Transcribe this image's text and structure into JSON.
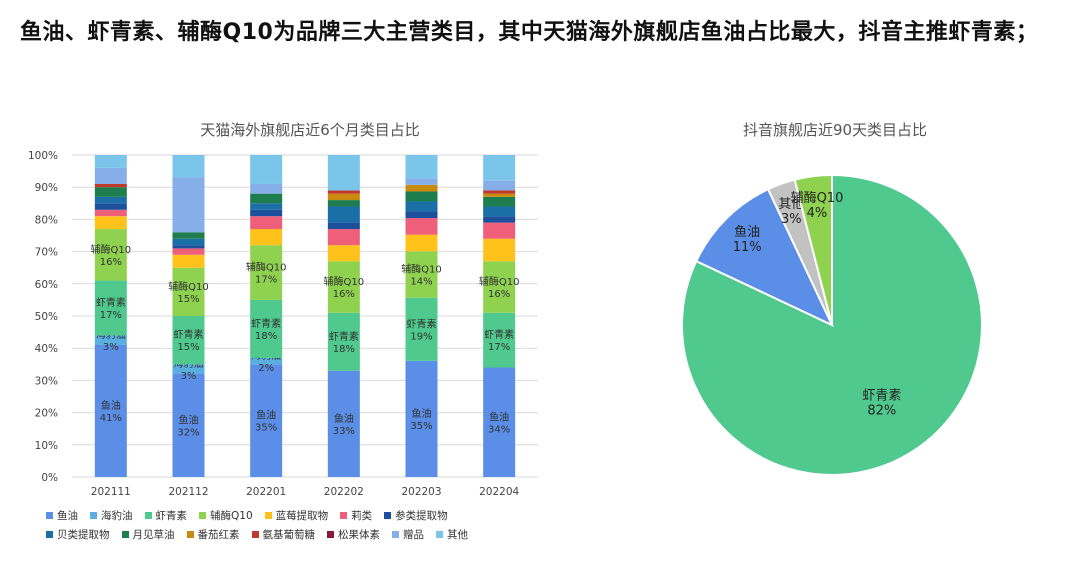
{
  "headline": "鱼油、虾青素、辅酶Q10为品牌三大主营类目，其中天猫海外旗舰店鱼油占比最大，抖音主推虾青素；",
  "colors": {
    "鱼油": "#5b8ee6",
    "海豹油": "#5aaee0",
    "虾青素": "#4fc98e",
    "辅酶Q10": "#8fd24f",
    "蓝莓提取物": "#ffc21a",
    "莉类": "#ef5f7a",
    "参类提取物": "#1c4f9c",
    "贝类提取物": "#1a6fa6",
    "月见草油": "#1e7d4e",
    "番茄红素": "#c98a10",
    "氨基葡萄糖": "#c0392b",
    "松果体素": "#8b1a3a",
    "赠品": "#86aee8",
    "其他": "#7cc5ea",
    "pie_other": "#c2c2c2"
  },
  "chart_data": [
    {
      "type": "bar",
      "stacked": true,
      "title": "天猫海外旗舰店近6个月类目占比",
      "categories": [
        "202111",
        "202112",
        "202201",
        "202202",
        "202203",
        "202204"
      ],
      "ylim": [
        0,
        100
      ],
      "yticks": [
        "0%",
        "10%",
        "20%",
        "30%",
        "40%",
        "50%",
        "60%",
        "70%",
        "80%",
        "90%",
        "100%"
      ],
      "grid": true,
      "legend_position": "bottom",
      "series": [
        {
          "name": "鱼油",
          "values": [
            41,
            32,
            35,
            33,
            35,
            34
          ],
          "labels": [
            "鱼油\n41%",
            "鱼油\n32%",
            "鱼油\n35%",
            "鱼油\n33%",
            "鱼油\n35%",
            "鱼油\n34%"
          ]
        },
        {
          "name": "海豹油",
          "values": [
            3,
            3,
            2,
            0,
            0,
            0
          ],
          "labels": [
            "海豹油\n3%",
            "海豹油\n3%",
            "海豹油\n2%",
            "",
            "",
            ""
          ]
        },
        {
          "name": "虾青素",
          "values": [
            17,
            15,
            18,
            18,
            19,
            17
          ],
          "labels": [
            "虾青素\n17%",
            "虾青素\n15%",
            "虾青素\n18%",
            "虾青素\n18%",
            "虾青素\n19%",
            "虾青素\n17%"
          ]
        },
        {
          "name": "辅酶Q10",
          "values": [
            16,
            15,
            17,
            16,
            14,
            16
          ],
          "labels": [
            "辅酶Q10\n16%",
            "辅酶Q10\n15%",
            "辅酶Q10\n17%",
            "辅酶Q10\n16%",
            "辅酶Q10\n14%",
            "辅酶Q10\n16%"
          ]
        },
        {
          "name": "蓝莓提取物",
          "values": [
            4,
            4,
            5,
            5,
            5,
            7
          ],
          "labels": [
            "",
            "",
            "",
            "",
            "",
            ""
          ]
        },
        {
          "name": "莉类",
          "values": [
            2,
            2,
            4,
            5,
            5,
            5
          ],
          "labels": [
            "",
            "",
            "",
            "",
            "",
            ""
          ]
        },
        {
          "name": "参类提取物",
          "values": [
            2,
            1,
            2,
            2,
            2,
            2
          ],
          "labels": [
            "",
            "",
            "",
            "",
            "",
            ""
          ]
        },
        {
          "name": "贝类提取物",
          "values": [
            2,
            2,
            2,
            5,
            3,
            3
          ],
          "labels": [
            "",
            "",
            "",
            "",
            "",
            ""
          ]
        },
        {
          "name": "月见草油",
          "values": [
            3,
            2,
            3,
            2,
            3,
            3
          ],
          "labels": [
            "",
            "",
            "",
            "",
            "",
            ""
          ]
        },
        {
          "name": "番茄红素",
          "values": [
            0,
            0,
            0,
            2,
            2,
            1
          ],
          "labels": [
            "",
            "",
            "",
            "",
            "",
            ""
          ]
        },
        {
          "name": "氨基葡萄糖",
          "values": [
            1,
            0,
            0,
            1,
            0,
            1
          ],
          "labels": [
            "",
            "",
            "",
            "",
            "",
            ""
          ]
        },
        {
          "name": "松果体素",
          "values": [
            0,
            0,
            0,
            0,
            0,
            0
          ],
          "labels": [
            "",
            "",
            "",
            "",
            "",
            ""
          ]
        },
        {
          "name": "赠品",
          "values": [
            5,
            17,
            3,
            0,
            2,
            3
          ],
          "labels": [
            "",
            "",
            "",
            "",
            "",
            ""
          ]
        },
        {
          "name": "其他",
          "values": [
            4,
            7,
            9,
            11,
            7,
            8
          ],
          "labels": [
            "",
            "",
            "",
            "",
            "",
            ""
          ]
        }
      ]
    },
    {
      "type": "pie",
      "title": "抖音旗舰店近90天类目占比",
      "slices": [
        {
          "name": "虾青素",
          "value": 82,
          "label": "虾青素\n82%"
        },
        {
          "name": "鱼油",
          "value": 11,
          "label": "鱼油\n11%"
        },
        {
          "name": "其他",
          "value": 3,
          "label": "其他\n3%"
        },
        {
          "name": "辅酶Q10",
          "value": 4,
          "label": "辅酶Q10\n4%"
        }
      ]
    }
  ]
}
